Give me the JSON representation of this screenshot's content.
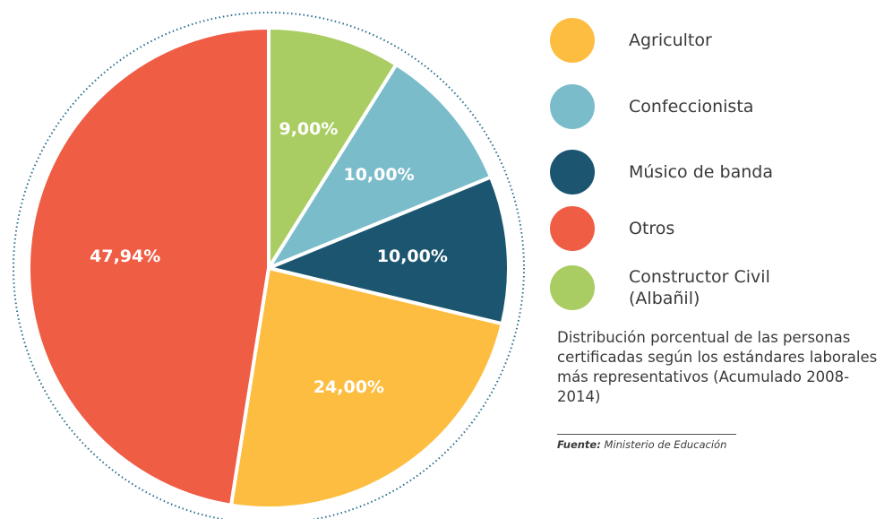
{
  "chart_data": {
    "type": "pie",
    "categories": [
      "Constructor Civil (Albañil)",
      "Confeccionista",
      "Músico de banda",
      "Agricultor",
      "Otros"
    ],
    "values": [
      9.0,
      10.0,
      10.0,
      24.0,
      47.94
    ],
    "value_labels": [
      "9,00%",
      "10,00%",
      "10,00%",
      "24,00%",
      "47,94%"
    ],
    "colors": [
      "#a9cd62",
      "#7bbccb",
      "#1b5570",
      "#fdbd40",
      "#ef5d45"
    ],
    "caption": "Distribución porcentual de las personas certificadas según los estándares laborales más representativos (Acumulado 2008-2014)",
    "source_label": "Fuente:",
    "source": "Ministerio de Educación"
  }
}
